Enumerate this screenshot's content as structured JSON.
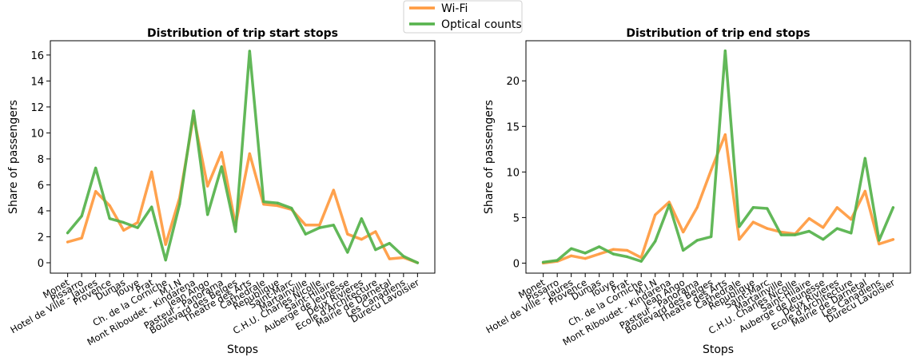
{
  "legend": {
    "entries": [
      {
        "name": "Wi-Fi",
        "color": "#ff9a3f"
      },
      {
        "name": "Optical counts",
        "color": "#55b24b"
      }
    ],
    "placement": "top-center"
  },
  "chart_data": [
    {
      "type": "line",
      "title": "Distribution of trip start stops",
      "xlabel": "Stops",
      "ylabel": "Share of passengers",
      "ylim": [
        -0.8,
        17.1
      ],
      "yticks": [
        0,
        2,
        4,
        6,
        8,
        10,
        12,
        14,
        16
      ],
      "grid": false,
      "categories": [
        "Monet",
        "Pissarro",
        "Hotel de Ville - Jaures",
        "Provence",
        "Dumas",
        "Touye",
        "Prat",
        "Ch. de la Corniche",
        "M.I.N",
        "Mont Riboudet - Kindarena",
        "Jean Ango",
        "Pasteur - Panorama",
        "Boulevard des Belges",
        "Theatre des Arts",
        "Cathedrale",
        "Republique",
        "Saint-Marc",
        "Martainville",
        "C.H.U. Charles Nicolle",
        "Saint-Hilaire",
        "Auberge de Jeunesse",
        "Deux Rivieres",
        "Ecole d'Architecture",
        "Mairie de Darnetal",
        "Les Canadiens",
        "Durecu Lavoisier"
      ],
      "series": [
        {
          "name": "Wi-Fi",
          "color": "#ff9a3f",
          "values": [
            1.6,
            1.9,
            5.5,
            4.4,
            2.5,
            3.1,
            7.0,
            1.4,
            5.0,
            11.3,
            5.9,
            8.5,
            2.9,
            8.4,
            4.5,
            4.4,
            4.1,
            2.9,
            2.9,
            5.6,
            2.2,
            1.8,
            2.4,
            0.3,
            0.4,
            0.0
          ]
        },
        {
          "name": "Optical counts",
          "color": "#55b24b",
          "values": [
            2.3,
            3.6,
            7.3,
            3.4,
            3.1,
            2.7,
            4.3,
            0.2,
            4.5,
            11.7,
            3.7,
            7.4,
            2.4,
            16.3,
            4.7,
            4.6,
            4.2,
            2.2,
            2.7,
            2.9,
            0.8,
            3.4,
            1.0,
            1.5,
            0.5,
            0.0
          ]
        }
      ]
    },
    {
      "type": "line",
      "title": "Distribution of trip end stops",
      "xlabel": "Stops",
      "ylabel": "Share of passengers",
      "ylim": [
        -1.1,
        24.4
      ],
      "yticks": [
        0,
        5,
        10,
        15,
        20
      ],
      "grid": false,
      "categories": [
        "Monet",
        "Pissarro",
        "Hotel de Ville - Jaures",
        "Provence",
        "Dumas",
        "Touye",
        "Prat",
        "Ch. de la Corniche",
        "M.I.N",
        "Mont Riboudet - Kindarena",
        "Jean Ango",
        "Pasteur - Panorama",
        "Boulevard des Belges",
        "Theatre des Arts",
        "Cathedrale",
        "Republique",
        "Saint-Marc",
        "Martainville",
        "C.H.U. Charles Nicolle",
        "Saint-Hilaire",
        "Auberge de Jeunesse",
        "Deux Rivieres",
        "Ecole d'Architecture",
        "Mairie de Darnetal",
        "Les Canadiens",
        "Durecu Lavoisier"
      ],
      "series": [
        {
          "name": "Wi-Fi",
          "color": "#ff9a3f",
          "values": [
            0.0,
            0.2,
            0.8,
            0.5,
            1.0,
            1.5,
            1.4,
            0.6,
            5.3,
            6.7,
            3.4,
            6.1,
            10.2,
            14.1,
            2.6,
            4.5,
            3.8,
            3.4,
            3.2,
            4.9,
            3.9,
            6.1,
            4.8,
            7.9,
            2.1,
            2.6
          ]
        },
        {
          "name": "Optical counts",
          "color": "#55b24b",
          "values": [
            0.1,
            0.3,
            1.6,
            1.1,
            1.8,
            1.0,
            0.7,
            0.2,
            2.4,
            6.4,
            1.4,
            2.5,
            2.9,
            23.3,
            4.0,
            6.1,
            6.0,
            3.1,
            3.1,
            3.5,
            2.6,
            3.8,
            3.3,
            11.5,
            2.5,
            6.1
          ]
        }
      ]
    }
  ]
}
